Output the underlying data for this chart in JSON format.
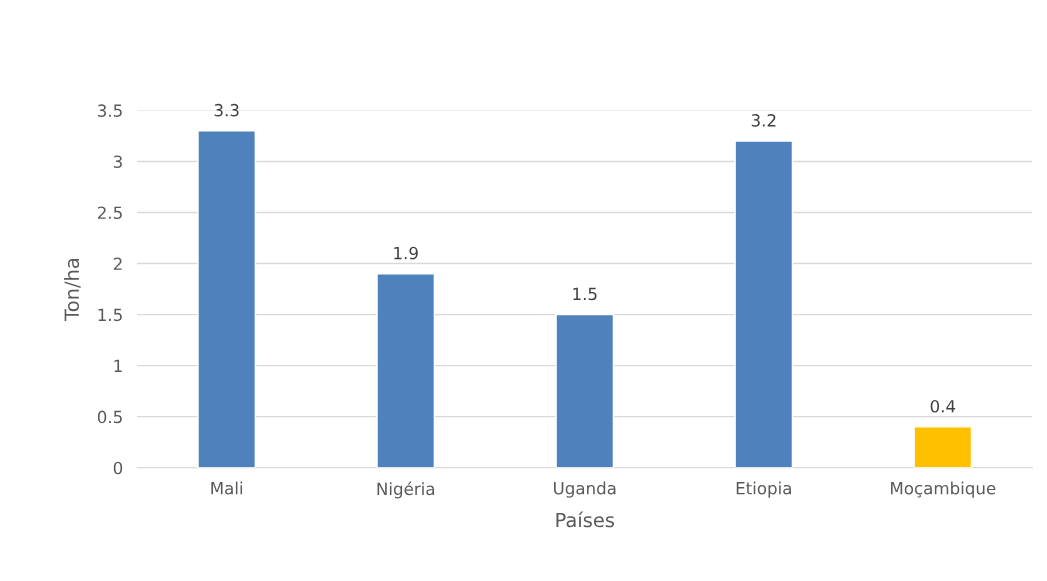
{
  "chart_data": {
    "type": "bar",
    "xlabel": "Países",
    "ylabel": "Ton/ha",
    "categories": [
      "Mali",
      "Nigéria",
      "Uganda",
      "Etiopia",
      "Moçambique"
    ],
    "values": [
      3.3,
      1.9,
      1.5,
      3.2,
      0.4
    ],
    "colors": [
      "#4f81bd",
      "#4f81bd",
      "#4f81bd",
      "#4f81bd",
      "#ffc000"
    ],
    "ylim": [
      0,
      3.5
    ],
    "yticks": [
      0,
      {
        "value": 0.5,
        "label": "0.5"
      },
      1,
      {
        "value": 1.5,
        "label": "1.5"
      },
      2,
      {
        "value": 2.5,
        "label": "2.5"
      },
      3,
      {
        "value": 3.5,
        "label": "3.5"
      }
    ],
    "grid": "y",
    "data_labels": true
  }
}
